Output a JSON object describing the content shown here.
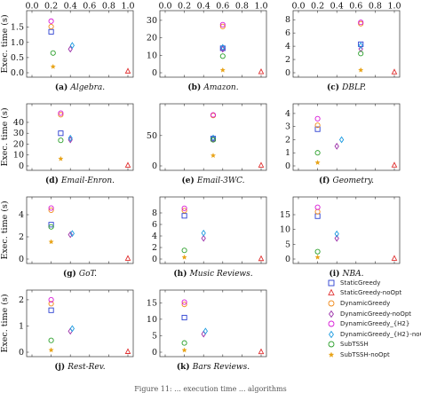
{
  "figure": {
    "y_axis_label": "Exec. time (s)",
    "top_tick_labels": [
      "0.0",
      "0.2",
      "0.4",
      "0.6",
      "0.8",
      "1.0"
    ],
    "bottom_caption": "Figure 11: ... execution time ... algorithms"
  },
  "legend": [
    {
      "label": "StaticGreedy",
      "marker": "square",
      "color": "#2b3fd1"
    },
    {
      "label": "StaticGreedy-noOpt",
      "marker": "triangle",
      "color": "#e03030"
    },
    {
      "label": "DynamicGreedy",
      "marker": "circle",
      "color": "#f08a1a"
    },
    {
      "label": "DynamicGreedy-noOpt",
      "marker": "diamond",
      "color": "#9b2fa8"
    },
    {
      "label": "DynamicGreedy_{H2}",
      "marker": "circle",
      "color": "#d81ad8"
    },
    {
      "label": "DynamicGreedy_{H2}-noOpt",
      "marker": "diamond",
      "color": "#1b9be0"
    },
    {
      "label": "SubTSSH",
      "marker": "circle",
      "color": "#2ca02c"
    },
    {
      "label": "SubTSSH-noOpt",
      "marker": "star",
      "color": "#e8a317"
    }
  ],
  "chart_data": [
    {
      "type": "scatter",
      "caption_prefix": "(a)",
      "caption_name": "Algebra.",
      "xlim": [
        0,
        1
      ],
      "ylim": [
        0,
        1.9
      ],
      "yticks": [
        "0.0",
        "0.5",
        "1.0",
        "1.5"
      ],
      "ytick_values": [
        0,
        0.5,
        1,
        1.5
      ],
      "points": [
        {
          "series": "StaticGreedy",
          "x": 0.2,
          "y": 1.35
        },
        {
          "series": "StaticGreedy-noOpt",
          "x": 1.0,
          "y": 0.05
        },
        {
          "series": "DynamicGreedy",
          "x": 0.2,
          "y": 1.52
        },
        {
          "series": "DynamicGreedy-noOpt",
          "x": 0.4,
          "y": 0.78
        },
        {
          "series": "DynamicGreedy_{H2}",
          "x": 0.2,
          "y": 1.7
        },
        {
          "series": "DynamicGreedy_{H2}-noOpt",
          "x": 0.42,
          "y": 0.9
        },
        {
          "series": "SubTSSH",
          "x": 0.22,
          "y": 0.65
        },
        {
          "series": "SubTSSH-noOpt",
          "x": 0.22,
          "y": 0.2
        }
      ]
    },
    {
      "type": "scatter",
      "caption_prefix": "(b)",
      "caption_name": "Amazon.",
      "xlim": [
        0,
        1
      ],
      "ylim": [
        0,
        33
      ],
      "yticks": [
        "0",
        "10",
        "20",
        "30"
      ],
      "ytick_values": [
        0,
        10,
        20,
        30
      ],
      "points": [
        {
          "series": "StaticGreedy",
          "x": 0.6,
          "y": 14
        },
        {
          "series": "StaticGreedy-noOpt",
          "x": 1.0,
          "y": 0.5
        },
        {
          "series": "DynamicGreedy",
          "x": 0.6,
          "y": 26.5
        },
        {
          "series": "DynamicGreedy-noOpt",
          "x": 0.6,
          "y": 13.5
        },
        {
          "series": "DynamicGreedy_{H2}",
          "x": 0.6,
          "y": 27.5
        },
        {
          "series": "DynamicGreedy_{H2}-noOpt",
          "x": 0.6,
          "y": 14.5
        },
        {
          "series": "SubTSSH",
          "x": 0.6,
          "y": 9.5
        },
        {
          "series": "SubTSSH-noOpt",
          "x": 0.6,
          "y": 1.5
        }
      ]
    },
    {
      "type": "scatter",
      "caption_prefix": "(c)",
      "caption_name": "DBLP.",
      "xlim": [
        0,
        1
      ],
      "ylim": [
        0,
        8.7
      ],
      "yticks": [
        "0",
        "2",
        "4",
        "6",
        "8"
      ],
      "ytick_values": [
        0,
        2,
        4,
        6,
        8
      ],
      "points": [
        {
          "series": "StaticGreedy",
          "x": 0.65,
          "y": 4.3
        },
        {
          "series": "StaticGreedy-noOpt",
          "x": 1.0,
          "y": 0.1
        },
        {
          "series": "DynamicGreedy",
          "x": 0.65,
          "y": 7.4
        },
        {
          "series": "DynamicGreedy-noOpt",
          "x": 0.65,
          "y": 3.6
        },
        {
          "series": "DynamicGreedy_{H2}",
          "x": 0.65,
          "y": 7.6
        },
        {
          "series": "DynamicGreedy_{H2}-noOpt",
          "x": 0.65,
          "y": 4.1
        },
        {
          "series": "SubTSSH",
          "x": 0.65,
          "y": 2.9
        },
        {
          "series": "SubTSSH-noOpt",
          "x": 0.65,
          "y": 0.4
        }
      ]
    },
    {
      "type": "scatter",
      "caption_prefix": "(d)",
      "caption_name": "Email-Enron.",
      "xlim": [
        0,
        1
      ],
      "ylim": [
        0,
        53
      ],
      "yticks": [
        "0",
        "10",
        "20",
        "30",
        "40"
      ],
      "ytick_values": [
        0,
        10,
        20,
        30,
        40
      ],
      "points": [
        {
          "series": "StaticGreedy",
          "x": 0.3,
          "y": 30
        },
        {
          "series": "StaticGreedy-noOpt",
          "x": 1.0,
          "y": 0.5
        },
        {
          "series": "DynamicGreedy",
          "x": 0.3,
          "y": 47
        },
        {
          "series": "DynamicGreedy-noOpt",
          "x": 0.4,
          "y": 24
        },
        {
          "series": "DynamicGreedy_{H2}",
          "x": 0.3,
          "y": 48.5
        },
        {
          "series": "DynamicGreedy_{H2}-noOpt",
          "x": 0.4,
          "y": 25.5
        },
        {
          "series": "SubTSSH",
          "x": 0.3,
          "y": 23.5
        },
        {
          "series": "SubTSSH-noOpt",
          "x": 0.3,
          "y": 6.5
        }
      ]
    },
    {
      "type": "scatter",
      "caption_prefix": "(e)",
      "caption_name": "Email-3WC.",
      "xlim": [
        0,
        1
      ],
      "ylim": [
        0,
        95
      ],
      "yticks": [
        "0",
        "50"
      ],
      "ytick_values": [
        0,
        50
      ],
      "points": [
        {
          "series": "StaticGreedy",
          "x": 0.5,
          "y": 45
        },
        {
          "series": "StaticGreedy-noOpt",
          "x": 1.0,
          "y": 1
        },
        {
          "series": "DynamicGreedy",
          "x": 0.5,
          "y": 83
        },
        {
          "series": "DynamicGreedy-noOpt",
          "x": 0.5,
          "y": 44
        },
        {
          "series": "DynamicGreedy_{H2}",
          "x": 0.5,
          "y": 84
        },
        {
          "series": "DynamicGreedy_{H2}-noOpt",
          "x": 0.5,
          "y": 46
        },
        {
          "series": "SubTSSH",
          "x": 0.5,
          "y": 43
        },
        {
          "series": "SubTSSH-noOpt",
          "x": 0.5,
          "y": 17
        }
      ]
    },
    {
      "type": "scatter",
      "caption_prefix": "(f)",
      "caption_name": "Geometry.",
      "xlim": [
        0,
        1
      ],
      "ylim": [
        0,
        4.4
      ],
      "yticks": [
        "0",
        "1",
        "2",
        "3",
        "4"
      ],
      "ytick_values": [
        0,
        1,
        2,
        3,
        4
      ],
      "points": [
        {
          "series": "StaticGreedy",
          "x": 0.2,
          "y": 2.8
        },
        {
          "series": "StaticGreedy-noOpt",
          "x": 1.0,
          "y": 0.05
        },
        {
          "series": "DynamicGreedy",
          "x": 0.2,
          "y": 3.1
        },
        {
          "series": "DynamicGreedy-noOpt",
          "x": 0.4,
          "y": 1.5
        },
        {
          "series": "DynamicGreedy_{H2}",
          "x": 0.2,
          "y": 3.6
        },
        {
          "series": "DynamicGreedy_{H2}-noOpt",
          "x": 0.45,
          "y": 2.0
        },
        {
          "series": "SubTSSH",
          "x": 0.2,
          "y": 1.0
        },
        {
          "series": "SubTSSH-noOpt",
          "x": 0.2,
          "y": 0.25
        }
      ]
    },
    {
      "type": "scatter",
      "caption_prefix": "(g)",
      "caption_name": "GoT.",
      "xlim": [
        0,
        1
      ],
      "ylim": [
        0,
        5.2
      ],
      "yticks": [
        "0",
        "2",
        "4"
      ],
      "ytick_values": [
        0,
        2,
        4
      ],
      "points": [
        {
          "series": "StaticGreedy",
          "x": 0.2,
          "y": 3.1
        },
        {
          "series": "StaticGreedy-noOpt",
          "x": 1.0,
          "y": 0.05
        },
        {
          "series": "DynamicGreedy",
          "x": 0.2,
          "y": 4.4
        },
        {
          "series": "DynamicGreedy-noOpt",
          "x": 0.4,
          "y": 2.2
        },
        {
          "series": "DynamicGreedy_{H2}",
          "x": 0.2,
          "y": 4.6
        },
        {
          "series": "DynamicGreedy_{H2}-noOpt",
          "x": 0.42,
          "y": 2.3
        },
        {
          "series": "SubTSSH",
          "x": 0.2,
          "y": 2.9
        },
        {
          "series": "SubTSSH-noOpt",
          "x": 0.2,
          "y": 1.55
        }
      ]
    },
    {
      "type": "scatter",
      "caption_prefix": "(h)",
      "caption_name": "Music Reviews.",
      "xlim": [
        0,
        1
      ],
      "ylim": [
        0,
        10
      ],
      "yticks": [
        "0",
        "2",
        "4",
        "6",
        "8"
      ],
      "ytick_values": [
        0,
        2,
        4,
        6,
        8
      ],
      "points": [
        {
          "series": "StaticGreedy",
          "x": 0.2,
          "y": 7.5
        },
        {
          "series": "StaticGreedy-noOpt",
          "x": 1.0,
          "y": 0.05
        },
        {
          "series": "DynamicGreedy",
          "x": 0.2,
          "y": 8.4
        },
        {
          "series": "DynamicGreedy-noOpt",
          "x": 0.4,
          "y": 3.6
        },
        {
          "series": "DynamicGreedy_{H2}",
          "x": 0.2,
          "y": 8.8
        },
        {
          "series": "DynamicGreedy_{H2}-noOpt",
          "x": 0.4,
          "y": 4.5
        },
        {
          "series": "SubTSSH",
          "x": 0.2,
          "y": 1.5
        },
        {
          "series": "SubTSSH-noOpt",
          "x": 0.2,
          "y": 0.3
        }
      ]
    },
    {
      "type": "scatter",
      "caption_prefix": "(i)",
      "caption_name": "NBA.",
      "xlim": [
        0,
        1
      ],
      "ylim": [
        0,
        19.5
      ],
      "yticks": [
        "0",
        "5",
        "10",
        "15"
      ],
      "ytick_values": [
        0,
        5,
        10,
        15
      ],
      "points": [
        {
          "series": "StaticGreedy",
          "x": 0.2,
          "y": 14.5
        },
        {
          "series": "StaticGreedy-noOpt",
          "x": 1.0,
          "y": 0.2
        },
        {
          "series": "DynamicGreedy",
          "x": 0.2,
          "y": 16
        },
        {
          "series": "DynamicGreedy-noOpt",
          "x": 0.4,
          "y": 7
        },
        {
          "series": "DynamicGreedy_{H2}",
          "x": 0.2,
          "y": 17.5
        },
        {
          "series": "DynamicGreedy_{H2}-noOpt",
          "x": 0.4,
          "y": 8.5
        },
        {
          "series": "SubTSSH",
          "x": 0.2,
          "y": 2.5
        },
        {
          "series": "SubTSSH-noOpt",
          "x": 0.2,
          "y": 0.6
        }
      ]
    },
    {
      "type": "scatter",
      "caption_prefix": "(j)",
      "caption_name": "Rest-Rev.",
      "xlim": [
        0,
        1
      ],
      "ylim": [
        0,
        2.2
      ],
      "yticks": [
        "0",
        "1",
        "2"
      ],
      "ytick_values": [
        0,
        1,
        2
      ],
      "points": [
        {
          "series": "StaticGreedy",
          "x": 0.2,
          "y": 1.6
        },
        {
          "series": "StaticGreedy-noOpt",
          "x": 1.0,
          "y": 0.02
        },
        {
          "series": "DynamicGreedy",
          "x": 0.2,
          "y": 1.85
        },
        {
          "series": "DynamicGreedy-noOpt",
          "x": 0.4,
          "y": 0.8
        },
        {
          "series": "DynamicGreedy_{H2}",
          "x": 0.2,
          "y": 2.0
        },
        {
          "series": "DynamicGreedy_{H2}-noOpt",
          "x": 0.42,
          "y": 0.9
        },
        {
          "series": "SubTSSH",
          "x": 0.2,
          "y": 0.45
        },
        {
          "series": "SubTSSH-noOpt",
          "x": 0.2,
          "y": 0.08
        }
      ]
    },
    {
      "type": "scatter",
      "caption_prefix": "(k)",
      "caption_name": "Bars Reviews.",
      "xlim": [
        0,
        1
      ],
      "ylim": [
        0,
        17.5
      ],
      "yticks": [
        "0",
        "5",
        "10",
        "15"
      ],
      "ytick_values": [
        0,
        5,
        10,
        15
      ],
      "points": [
        {
          "series": "StaticGreedy",
          "x": 0.2,
          "y": 10.5
        },
        {
          "series": "StaticGreedy-noOpt",
          "x": 1.0,
          "y": 0.1
        },
        {
          "series": "DynamicGreedy",
          "x": 0.2,
          "y": 14.5
        },
        {
          "series": "DynamicGreedy-noOpt",
          "x": 0.4,
          "y": 5.5
        },
        {
          "series": "DynamicGreedy_{H2}",
          "x": 0.2,
          "y": 15.2
        },
        {
          "series": "DynamicGreedy_{H2}-noOpt",
          "x": 0.42,
          "y": 6.4
        },
        {
          "series": "SubTSSH",
          "x": 0.2,
          "y": 2.8
        },
        {
          "series": "SubTSSH-noOpt",
          "x": 0.2,
          "y": 0.6
        }
      ]
    }
  ]
}
